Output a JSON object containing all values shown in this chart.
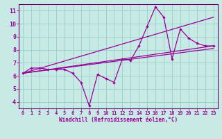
{
  "background_color": "#c8eae4",
  "line_color": "#990099",
  "grid_color": "#99cccc",
  "spine_color": "#660066",
  "xlim": [
    -0.5,
    23.5
  ],
  "ylim": [
    3.5,
    11.5
  ],
  "xticks": [
    0,
    1,
    2,
    3,
    4,
    5,
    6,
    7,
    8,
    9,
    10,
    11,
    12,
    13,
    14,
    15,
    16,
    17,
    18,
    19,
    20,
    21,
    22,
    23
  ],
  "yticks": [
    4,
    5,
    6,
    7,
    8,
    9,
    10,
    11
  ],
  "xlabel": "Windchill (Refroidissement éolien,°C)",
  "line1_x": [
    0,
    1,
    2,
    3,
    4,
    5,
    6,
    7,
    8,
    9,
    10,
    11,
    12,
    13,
    14,
    15,
    16,
    17,
    18,
    19,
    20,
    21,
    22,
    23
  ],
  "line1_y": [
    6.2,
    6.6,
    6.6,
    6.5,
    6.5,
    6.5,
    6.2,
    5.5,
    3.7,
    6.1,
    5.8,
    5.5,
    7.3,
    7.2,
    8.3,
    9.8,
    11.3,
    10.5,
    7.3,
    9.6,
    8.9,
    8.5,
    8.3,
    8.3
  ],
  "line2_x": [
    0,
    23
  ],
  "line2_y": [
    6.2,
    10.5
  ],
  "line3_x": [
    0,
    23
  ],
  "line3_y": [
    6.2,
    8.3
  ],
  "line4_x": [
    0,
    23
  ],
  "line4_y": [
    6.2,
    8.1
  ]
}
